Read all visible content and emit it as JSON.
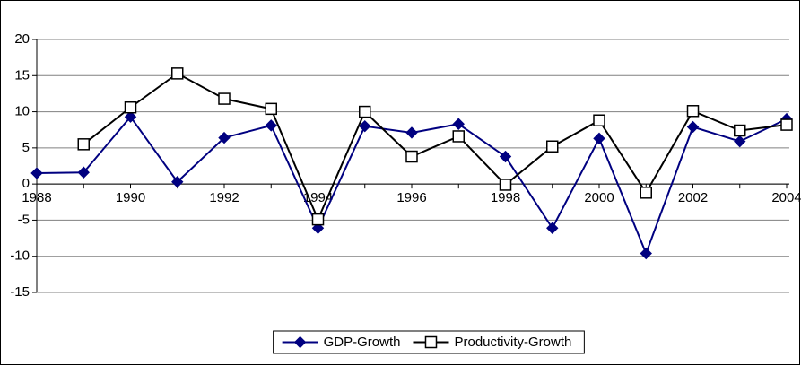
{
  "chart_data": {
    "type": "line",
    "categories": [
      "1988",
      null,
      "1990",
      null,
      "1992",
      null,
      "1994",
      null,
      "1996",
      null,
      "1998",
      null,
      "2000",
      null,
      "2002",
      null,
      "2004"
    ],
    "series": [
      {
        "name": "GDP-Growth",
        "color": "#000080",
        "marker": "diamond",
        "values": [
          1.5,
          1.6,
          9.3,
          0.3,
          6.4,
          8.1,
          -6.1,
          8.0,
          7.1,
          8.3,
          3.8,
          -6.1,
          6.3,
          -9.6,
          7.9,
          5.9,
          9.0
        ]
      },
      {
        "name": "Productivity-Growth",
        "color": "#000000",
        "marker": "square",
        "values": [
          null,
          5.5,
          10.6,
          15.3,
          11.8,
          10.4,
          -4.9,
          10.0,
          3.8,
          6.6,
          -0.1,
          5.2,
          8.8,
          -1.2,
          10.1,
          7.4,
          8.2
        ]
      }
    ],
    "ylim": [
      -15,
      20
    ],
    "yticks": [
      -15,
      -10,
      -5,
      0,
      5,
      10,
      15,
      20
    ],
    "grid": true,
    "legend": "bottom"
  }
}
